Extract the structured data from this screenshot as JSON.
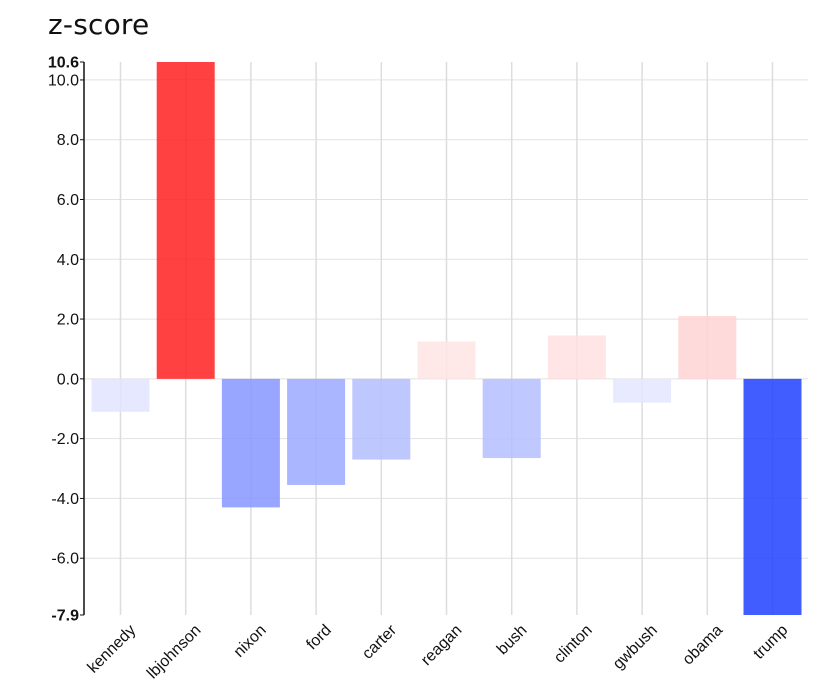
{
  "chart_data": {
    "type": "bar",
    "title": "z-score",
    "categories": [
      "kennedy",
      "lbjohnson",
      "nixon",
      "ford",
      "carter",
      "reagan",
      "bush",
      "clinton",
      "gwbush",
      "obama",
      "trump"
    ],
    "values": [
      -1.1,
      10.6,
      -4.3,
      -3.55,
      -2.7,
      1.25,
      -2.65,
      1.45,
      -0.8,
      2.1,
      -7.9
    ],
    "ylim": [
      -7.9,
      10.6
    ],
    "yticks": [
      -6.0,
      -4.0,
      -2.0,
      0.0,
      2.0,
      4.0,
      6.0,
      8.0,
      10.0
    ],
    "ytick_labels": [
      "-6.0",
      "-4.0",
      "-2.0",
      "0.0",
      "2.0",
      "4.0",
      "6.0",
      "8.0",
      "10.0"
    ],
    "ymin_label": "-7.9",
    "ymax_label": "10.6",
    "xlabel": "",
    "ylabel": "",
    "grid": true,
    "colors": {
      "positive_strong": "#ff2020",
      "negative_strong": "#2040ff"
    }
  }
}
